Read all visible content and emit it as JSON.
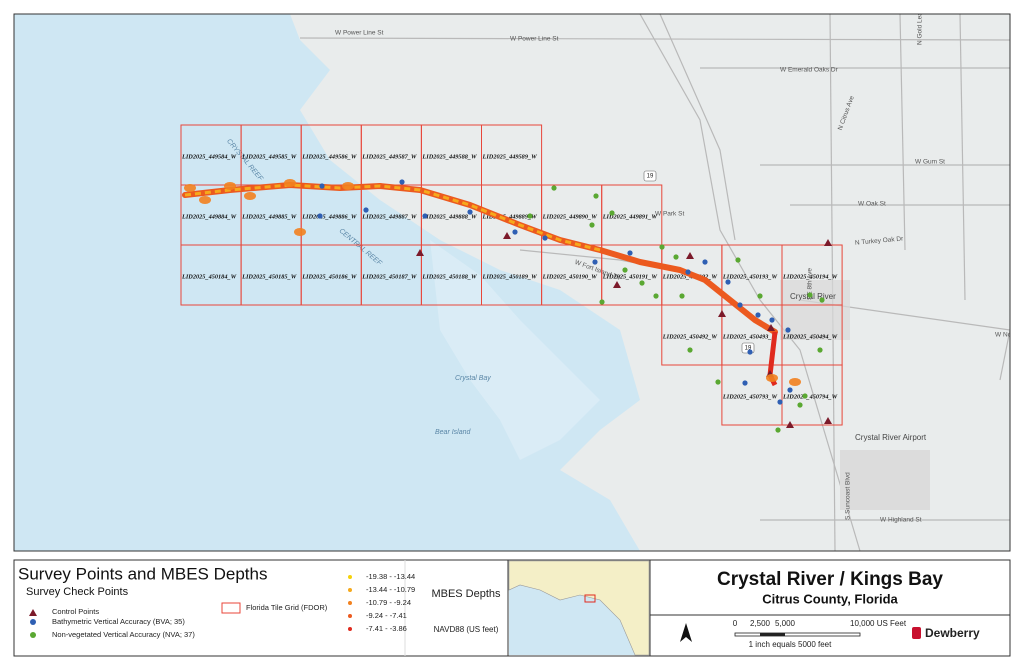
{
  "map": {
    "road_labels": [
      "W Power Line St",
      "W Power Line St",
      "W Emerald Oaks Dr",
      "W Gum St",
      "W Oak St",
      "N Turkey Oak Dr",
      "W Highland St",
      "S Suncoast Blvd",
      "N Citrus Ave",
      "SE 8th Ave",
      "W Fort Island Trl",
      "W Norvell Bryant Hwy",
      "N Gold Leaf Dr",
      "W Park St"
    ],
    "places": [
      "Crystal River",
      "Crystal River Airport"
    ],
    "water_labels": [
      "Crystal Bay",
      "Bear Island",
      "CRYSTAL REEF",
      "CENTRAL REEF"
    ],
    "route_shields": [
      "19",
      "19"
    ]
  },
  "tiles": {
    "rows": [
      [
        "LID2025_449584_W",
        "LID2025_449585_W",
        "LID2025_449586_W",
        "LID2025_449587_W",
        "LID2025_449588_W",
        "LID2025_449589_W"
      ],
      [
        "LID2025_449884_W",
        "LID2025_449885_W",
        "LID2025_449886_W",
        "LID2025_449887_W",
        "LID2025_449888_W",
        "LID2025_449889_W",
        "LID2025_449890_W",
        "LID2025_449891_W"
      ],
      [
        "LID2025_450184_W",
        "LID2025_450185_W",
        "LID2025_450186_W",
        "LID2025_450187_W",
        "LID2025_450188_W",
        "LID2025_450189_W",
        "LID2025_450190_W",
        "LID2025_450191_W",
        "LID2025_450192_W",
        "LID2025_450193_W",
        "LID2025_450194_W"
      ],
      [
        "LID2025_450492_W",
        "LID2025_450493_W",
        "LID2025_450494_W"
      ],
      [
        "LID2025_450793_W",
        "LID2025_450794_W"
      ]
    ]
  },
  "legend": {
    "title": "Survey Points and MBES Depths",
    "subtitle": "Survey Check Points",
    "items": [
      "Control Points",
      "Bathymetric Vertical Accuracy (BVA; 35)",
      "Non-vegetated Vertical Accuracy (NVA; 37)"
    ],
    "grid_item": "Florida Tile Grid (FDOR)",
    "depth_title": "MBES Depths",
    "depth_units": "NAVD88 (US feet)",
    "depth_classes": [
      {
        "label": "-19.38 - -13.44",
        "color": "#f5d20a"
      },
      {
        "label": "-13.44 - -10.79",
        "color": "#f6a91c"
      },
      {
        "label": "-10.79 - -9.24",
        "color": "#f2811f"
      },
      {
        "label": "-9.24 - -7.41",
        "color": "#ec5a1f"
      },
      {
        "label": "-7.41 - -3.86",
        "color": "#e02a1e"
      }
    ]
  },
  "title_block": {
    "title": "Crystal River / Kings Bay",
    "subtitle": "Citrus County, Florida",
    "scale_labels": [
      "0",
      "2,500",
      "5,000",
      "10,000 US Feet"
    ],
    "scale_caption": "1 inch equals 5000 feet",
    "logo": "Dewberry"
  }
}
